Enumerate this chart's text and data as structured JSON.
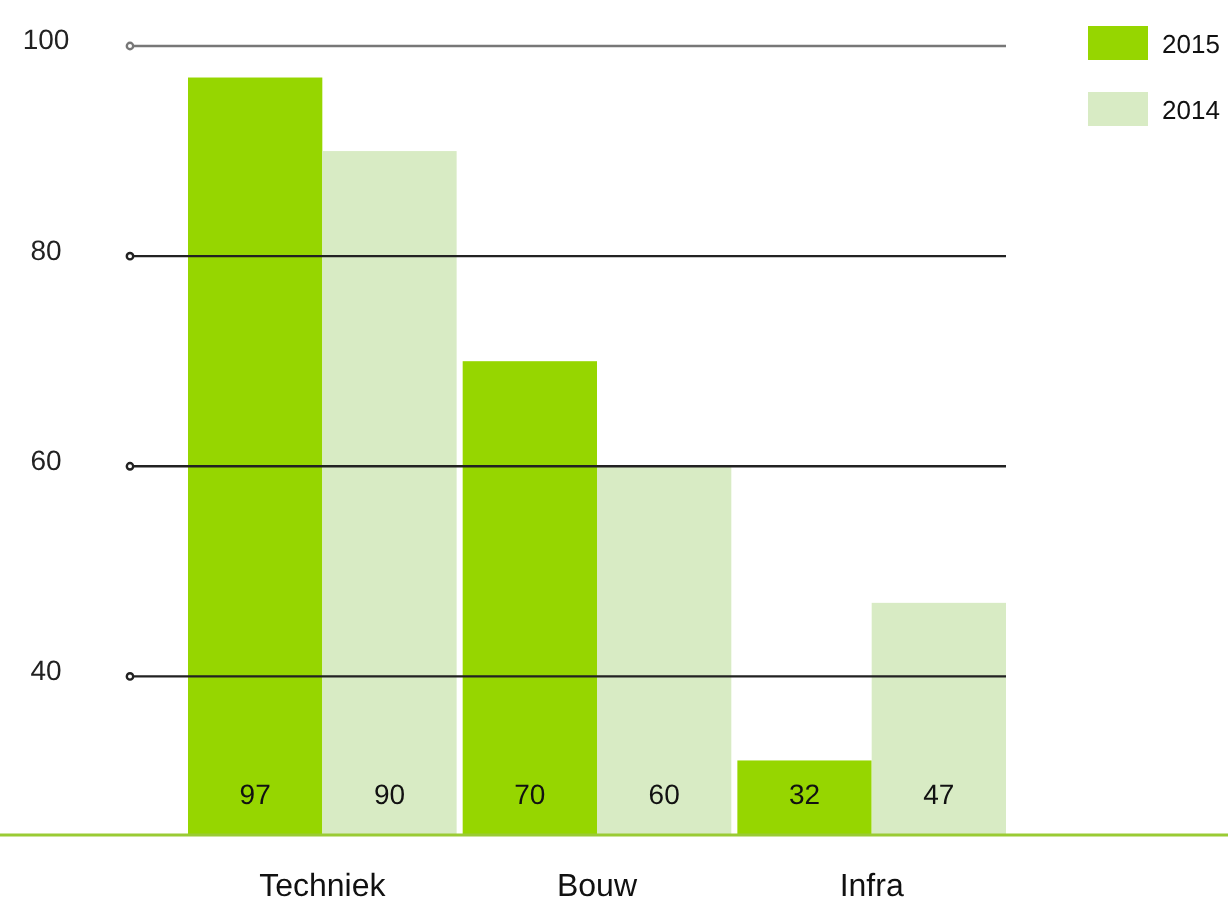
{
  "chart_data": {
    "type": "bar",
    "categories": [
      "Techniek",
      "Bouw",
      "Infra"
    ],
    "series": [
      {
        "name": "2015",
        "color": "#96d600",
        "values": [
          97,
          70,
          32
        ]
      },
      {
        "name": "2014",
        "color": "#d8ebc4",
        "values": [
          90,
          60,
          47
        ]
      }
    ],
    "ylim": [
      25,
      100
    ],
    "yticks": [
      40,
      60,
      80,
      100
    ],
    "grid": "y",
    "legend": "top right",
    "data_labels": true
  }
}
